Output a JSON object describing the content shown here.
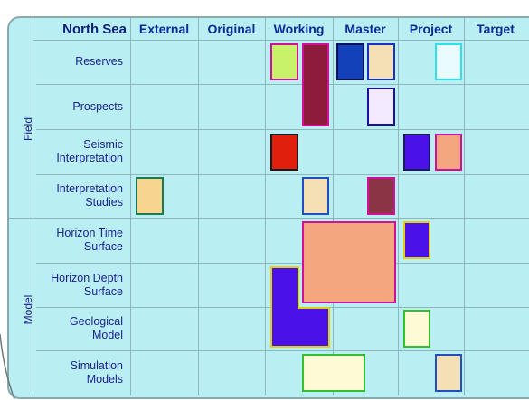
{
  "header": {
    "corner": "North Sea",
    "columns": [
      "External",
      "Original",
      "Working",
      "Master",
      "Project",
      "Target"
    ]
  },
  "groups": {
    "field": "Field",
    "model": "Model"
  },
  "rows": [
    {
      "line1": "Reserves",
      "line2": ""
    },
    {
      "line1": "Prospects",
      "line2": ""
    },
    {
      "line1": "Seismic",
      "line2": "Interpretation"
    },
    {
      "line1": "Interpretation",
      "line2": "Studies"
    },
    {
      "line1": "Horizon Time",
      "line2": "Surface"
    },
    {
      "line1": "Horizon Depth",
      "line2": "Surface"
    },
    {
      "line1": "Geological",
      "line2": "Model"
    },
    {
      "line1": "Simulation",
      "line2": "Models"
    }
  ],
  "colors": {
    "panel_bg": "#b9eef2",
    "header_text": "#0a2a9a",
    "lime": "#c8f26a",
    "maroon": "#8e1a3c",
    "royal_blue": "#1241b8",
    "beige": "#f5dfb4",
    "light_aqua": "#e9fbff",
    "lavender": "#f3eaff",
    "red": "#e0200c",
    "violet": "#4a12e8",
    "salmon": "#f4a77e",
    "tan": "#f7d58e",
    "dusty_maroon": "#8a3446",
    "cream": "#fdfad6"
  }
}
